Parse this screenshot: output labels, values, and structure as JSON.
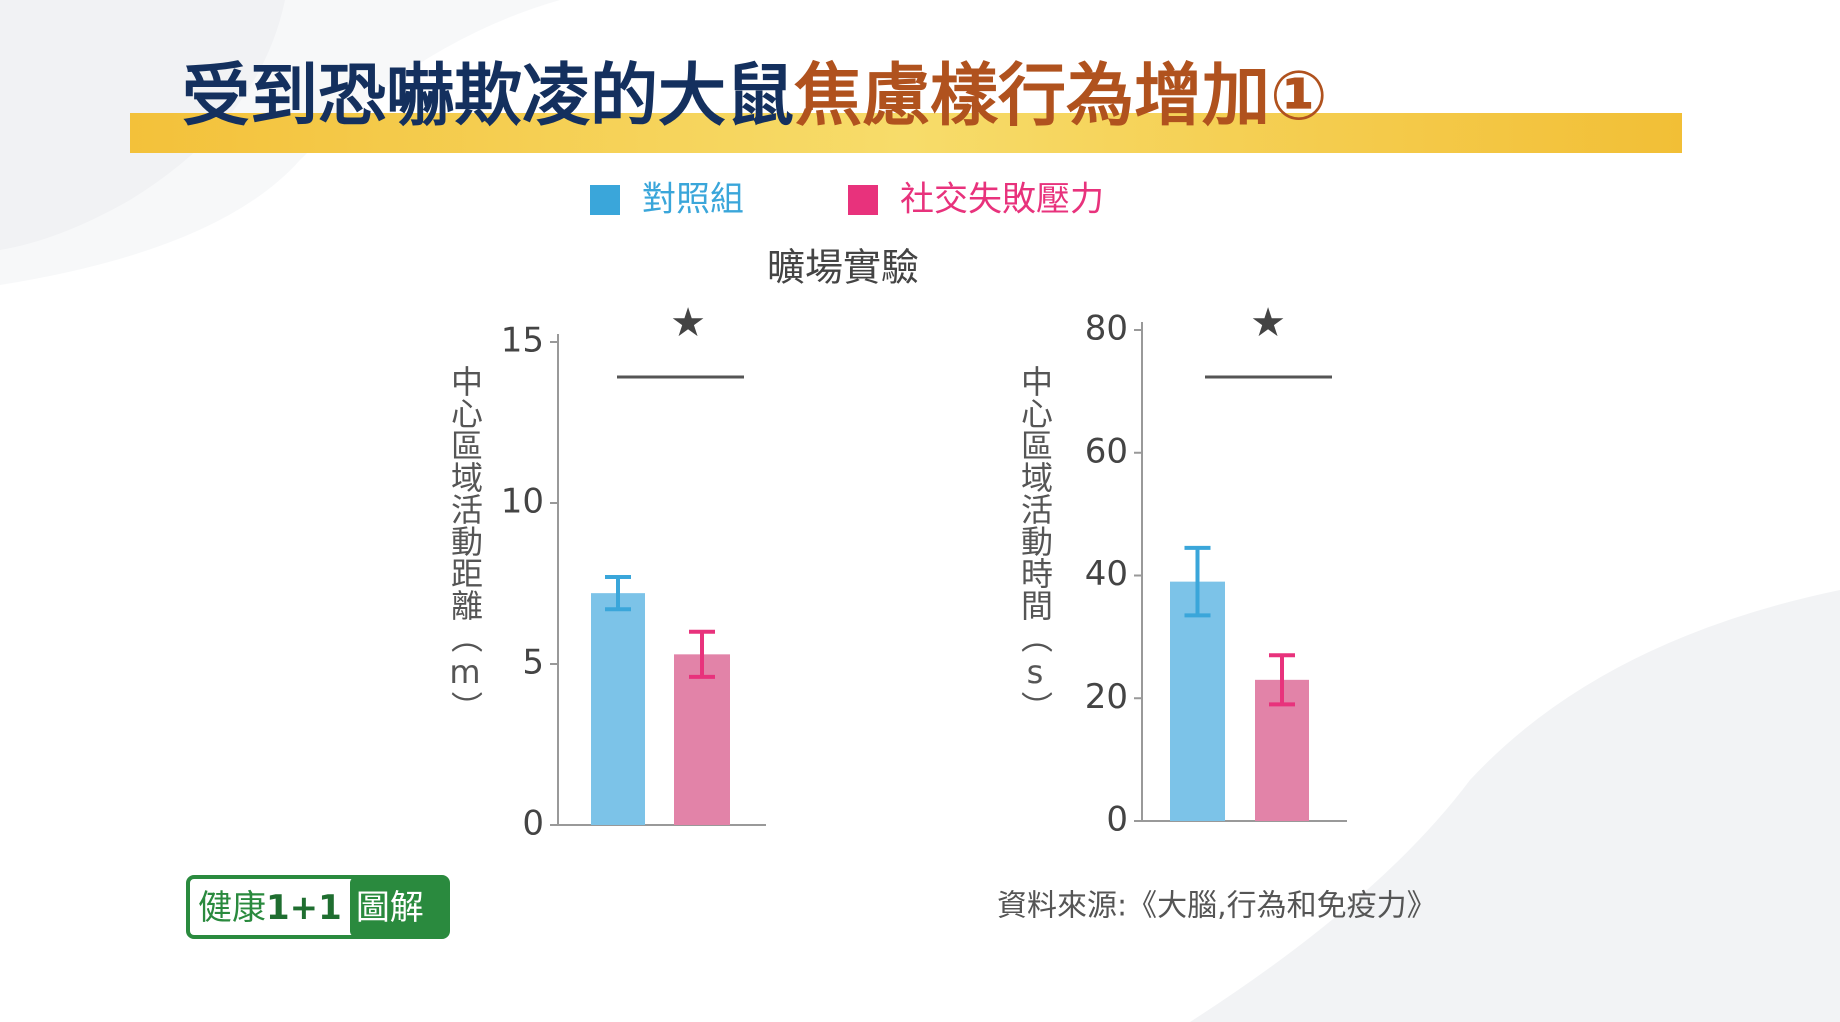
{
  "header": {
    "title_parts": [
      "受到恐嚇欺凌的大鼠",
      "焦慮樣行為增加①"
    ],
    "subtitle": "曠場實驗"
  },
  "chart_data": [
    {
      "type": "bar",
      "y_label": "中心區域活動距離（m）",
      "categories": [
        null
      ],
      "series": [
        {
          "name": "對照組",
          "color": "#7cc3e8",
          "error_color": "#3aa6da",
          "values": [
            7.2
          ],
          "errors": [
            0.5
          ]
        },
        {
          "name": "社交失敗壓力",
          "color": "#e283a8",
          "error_color": "#e8327c",
          "values": [
            5.3
          ],
          "errors": [
            0.7
          ]
        }
      ],
      "ylim": [
        0,
        15
      ],
      "yticks": [
        0,
        5,
        10,
        15
      ],
      "annotation": "★"
    },
    {
      "type": "bar",
      "y_label": "中心區域活動時間（s）",
      "categories": [
        null
      ],
      "series": [
        {
          "color": "#7cc3e8",
          "error_color": "#3aa6da",
          "values": [
            39
          ],
          "errors": [
            5.5
          ]
        },
        {
          "color": "#e283a8",
          "error_color": "#e8327c",
          "values": [
            23
          ],
          "errors": [
            4
          ]
        }
      ],
      "ylim": [
        0,
        80
      ],
      "yticks": [
        0,
        20,
        40,
        60,
        80
      ],
      "annotation": "★"
    }
  ],
  "logo": [
    "健康",
    "1+1",
    "圖解"
  ],
  "source": "資料來源:《大腦,行為和免疫力》"
}
